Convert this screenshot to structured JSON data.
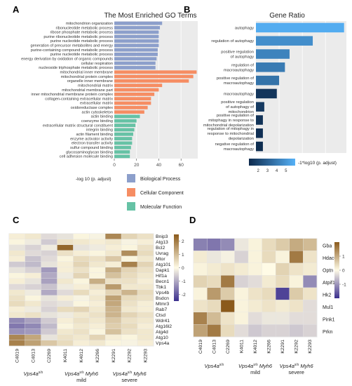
{
  "panels": {
    "a": "A",
    "b": "B",
    "c": "C",
    "d": "D"
  },
  "chart_data": [
    {
      "type": "bar",
      "panel": "A",
      "title": "The Most Enriched GO Terms",
      "xlabel": "-log 10 (p. adjust)",
      "xlim": [
        0,
        75
      ],
      "xticks": [
        0,
        20,
        40,
        60
      ],
      "categories": [
        "mitochondrion organization",
        "ribonucleotide metabolic process",
        "ribose phosphate metabolic process",
        "purine ribonucleotide metabolic process",
        "purine nucleotide metabolic process",
        "generation of precursor metabolites and energy",
        "purine-containing compound metabolic process",
        "purine nucleotide metabolic process",
        "energy derivation by oxidation of organic compounds",
        "cellular respiration",
        "nucleoside triphosphate metabolic process",
        "mitochondrial inner membrane",
        "mitochondrial protein complex",
        "organelle inner membrane",
        "mitochondrial matrix",
        "mitochondrial membrane part",
        "inner mitochondrial membrane protein complex",
        "collagen-containing extracellular matrix",
        "extracellular matrix",
        "oxidoreductase complex",
        "actin cytoskeleton",
        "actin binding",
        "coenzyme binding",
        "extracellular matrix structural constituent",
        "integrin binding",
        "actin filament binding",
        "enzyme activator activity",
        "electron transfer activity",
        "sulfur compound binding",
        "glycosaminoglycan binding",
        "cell adhesion molecule binding"
      ],
      "values": [
        43,
        41,
        40,
        40,
        40,
        40,
        39,
        39,
        38,
        37,
        37,
        74,
        71,
        67,
        43,
        40,
        36,
        33,
        33,
        30,
        27,
        23,
        20,
        19,
        18,
        17,
        16,
        16,
        15,
        14,
        14
      ],
      "groups": [
        "Biological Process",
        "Biological Process",
        "Biological Process",
        "Biological Process",
        "Biological Process",
        "Biological Process",
        "Biological Process",
        "Biological Process",
        "Biological Process",
        "Biological Process",
        "Biological Process",
        "Cellular Component",
        "Cellular Component",
        "Cellular Component",
        "Cellular Component",
        "Cellular Component",
        "Cellular Component",
        "Cellular Component",
        "Cellular Component",
        "Cellular Component",
        "Cellular Component",
        "Molecular Function",
        "Molecular Function",
        "Molecular Function",
        "Molecular Function",
        "Molecular Function",
        "Molecular Function",
        "Molecular Function",
        "Molecular Function",
        "Molecular Function",
        "Molecular Function"
      ],
      "legend": [
        {
          "name": "Biological Process",
          "color": "#8c9fcb"
        },
        {
          "name": "Cellular Component",
          "color": "#f68d63"
        },
        {
          "name": "Molecular Function",
          "color": "#66c2a5"
        }
      ],
      "legend_position": "bottom",
      "grid": true
    },
    {
      "type": "bar",
      "panel": "B",
      "title": "Gene Ratio",
      "categories": [
        "autophagy",
        "regulation of autophagy",
        "positive regulation of autophagy",
        "regulation of macroautophagy",
        "positive regulation of macroautophagy",
        "macroautophagy",
        "positive regulation of autophagy of mitochondrion",
        "positive regulation of mitophagy in response to mitochondrial depolarization",
        "regulation of mitophagy in response to mitochondrial depolarization",
        "negative regulation of macroautophagy"
      ],
      "category_lines": [
        [
          "autophagy"
        ],
        [
          "regulation of autophagy"
        ],
        [
          "positive regulation",
          "of autophagy"
        ],
        [
          "regulation of",
          "macroautophagy"
        ],
        [
          "positive regulation of",
          "macroautophagy"
        ],
        [
          "macroautophagy"
        ],
        [
          "positive regulation",
          "of autophagy of",
          "mitochondrion"
        ],
        [
          "positive regulation of",
          "mitophagy in response to",
          "mitochondrial depolarization"
        ],
        [
          "regulation of mitophagy in",
          "response to mitochondrial",
          "depolarization"
        ],
        [
          "negative regulation of",
          "macroautophagy"
        ]
      ],
      "values": [
        0.38,
        0.245,
        0.145,
        0.125,
        0.1,
        0.09,
        0.036,
        0.03,
        0.03,
        0.03
      ],
      "xlim": [
        0,
        0.39
      ],
      "color_values": [
        5.8,
        4.7,
        4.3,
        4.0,
        3.7,
        1.4,
        1.6,
        1.3,
        1.2,
        1.1
      ],
      "colorbar": {
        "label": "-1*log10 (p. adjust)",
        "ticks": [
          2,
          3,
          4,
          5
        ],
        "range": [
          1,
          6
        ],
        "low_color": "#0d2a4d",
        "high_color": "#56b1f7"
      },
      "grid": true
    },
    {
      "type": "heatmap",
      "panel": "C",
      "columns": [
        "C4019",
        "C4013",
        "C2269",
        "K4011",
        "K4012",
        "K2266",
        "K2291",
        "K2292",
        "K2293"
      ],
      "rows": [
        "Bnip3",
        "Atg13",
        "Bcl2",
        "Uvrag",
        "Mtor",
        "Atg101",
        "Dapk1",
        "Hif1a",
        "Becn1",
        "Tbk1",
        "Vps4b",
        "Bsdcn",
        "Mtmr3",
        "Rab7",
        "Ctsd",
        "Wdr41",
        "Atg16l2",
        "Atg4d",
        "Atg10",
        "Vps4a"
      ],
      "values": [
        [
          0.2,
          0.3,
          -0.4,
          -0.3,
          0.1,
          -0.1,
          1.8,
          0.6,
          0.4
        ],
        [
          0.1,
          -0.2,
          -0.6,
          0.4,
          0.3,
          0.2,
          0.3,
          -0.1,
          0.2
        ],
        [
          -0.3,
          -0.5,
          -0.2,
          2.3,
          -0.3,
          -0.2,
          0.2,
          0.1,
          0.4
        ],
        [
          0.3,
          -0.4,
          -0.5,
          0.4,
          0.2,
          0.1,
          0.3,
          1.7,
          0.5
        ],
        [
          0.2,
          -0.7,
          -0.4,
          0.1,
          0.5,
          0.4,
          0.8,
          0.1,
          0.3
        ],
        [
          -0.6,
          -0.8,
          -0.3,
          0.2,
          0.6,
          0.3,
          0.2,
          1.9,
          0.6
        ],
        [
          -0.3,
          -0.5,
          -1.2,
          0.2,
          0.4,
          0.1,
          1.2,
          0.6,
          0.4
        ],
        [
          0.1,
          0.2,
          -1.0,
          -0.2,
          0.6,
          0.1,
          0.9,
          0.5,
          0.3
        ],
        [
          0.2,
          -0.3,
          -1.1,
          0.3,
          0.1,
          1.2,
          0.4,
          0.4,
          0.2
        ],
        [
          -0.4,
          -0.5,
          -0.7,
          -0.2,
          0.2,
          0.4,
          1.5,
          0.3,
          0.3
        ],
        [
          0.3,
          -0.2,
          -1.0,
          -0.4,
          0.5,
          0.2,
          0.6,
          1.1,
          0.5
        ],
        [
          0.4,
          0.1,
          -0.3,
          0.2,
          -0.1,
          0.3,
          1.4,
          0.5,
          0.4
        ],
        [
          0.5,
          0.3,
          -0.4,
          -0.3,
          0.1,
          0.2,
          1.3,
          0.4,
          0.2
        ],
        [
          0.2,
          -0.2,
          -0.5,
          0.5,
          0.6,
          0.3,
          1.1,
          0.3,
          0.2
        ],
        [
          0.3,
          0.4,
          -0.3,
          -0.2,
          0.3,
          0.4,
          1.1,
          0.6,
          0.4
        ],
        [
          -1.4,
          -1.1,
          -0.6,
          0.2,
          0.4,
          0.3,
          0.8,
          0.4,
          0.3
        ],
        [
          -1.6,
          -1.4,
          -0.8,
          0.1,
          0.3,
          0.2,
          0.7,
          0.5,
          0.2
        ],
        [
          -1.3,
          -1.2,
          -0.6,
          0.3,
          0.4,
          0.1,
          0.9,
          0.4,
          0.3
        ],
        [
          1.8,
          1.3,
          -0.3,
          0.4,
          0.3,
          0.6,
          0.2,
          0.1,
          0.3
        ],
        [
          1.9,
          1.4,
          0.8,
          0.5,
          0.2,
          0.3,
          0.1,
          -0.1,
          0.2
        ]
      ],
      "scale": {
        "ticks": [
          2,
          1,
          0,
          -1,
          -2
        ],
        "range": [
          -2.5,
          2.5
        ]
      },
      "groups": [
        {
          "label": "Vps4a",
          "sup": "s/s",
          "suffix": "",
          "sub": "",
          "from": 0,
          "to": 2
        },
        {
          "label": "Vps4a",
          "sup": "s/s",
          "suffix": " Myh6",
          "sub": "mild",
          "from": 3,
          "to": 5
        },
        {
          "label": "Vps4a",
          "sup": "s/s",
          "suffix": " Myh6",
          "sub": "severe",
          "from": 6,
          "to": 8
        }
      ]
    },
    {
      "type": "heatmap",
      "panel": "D",
      "columns": [
        "C4019",
        "C4013",
        "C2269",
        "K4011",
        "K4012",
        "K2266",
        "K2291",
        "K2292",
        "K2293"
      ],
      "rows": [
        "Gba",
        "Hdac6",
        "Optn",
        "Atpif1",
        "Hk2",
        "Mul1",
        "Pink1",
        "Prkn"
      ],
      "values": [
        [
          -1.2,
          -1.3,
          -1.1,
          -0.2,
          0.1,
          0.4,
          0.6,
          1.0,
          0.8
        ],
        [
          0.2,
          -0.2,
          -0.1,
          -0.4,
          0.1,
          0.4,
          0.1,
          1.6,
          0.3
        ],
        [
          0.1,
          0.2,
          0.3,
          0.2,
          0.1,
          0.0,
          0.5,
          0.3,
          0.2
        ],
        [
          0.5,
          0.4,
          1.6,
          -0.4,
          -0.3,
          0.2,
          0.4,
          0.1,
          -1.1
        ],
        [
          0.1,
          1.2,
          0.6,
          0.1,
          0.3,
          0.4,
          -1.8,
          0.6,
          0.3
        ],
        [
          0.3,
          0.4,
          2.2,
          0.1,
          0.2,
          0.3,
          0.2,
          0.3,
          -0.3
        ],
        [
          1.5,
          0.8,
          0.3,
          0.1,
          -0.3,
          -0.2,
          -0.2,
          -0.3,
          -0.3
        ],
        [
          1.1,
          1.6,
          0.4,
          -0.3,
          -0.5,
          -0.4,
          -0.4,
          -0.5,
          -0.4
        ]
      ],
      "scale": {
        "ticks": [
          1,
          0,
          -1
        ],
        "range": [
          -2,
          2
        ]
      },
      "groups": [
        {
          "label": "Vps4a",
          "sup": "s/s",
          "suffix": "",
          "sub": "",
          "from": 0,
          "to": 2
        },
        {
          "label": "Vps4a",
          "sup": "s/s",
          "suffix": " Myh6",
          "sub": "mild",
          "from": 3,
          "to": 5
        },
        {
          "label": "Vps4a",
          "sup": "s/s",
          "suffix": " Myh6",
          "sub": "severe",
          "from": 6,
          "to": 8
        }
      ]
    }
  ]
}
